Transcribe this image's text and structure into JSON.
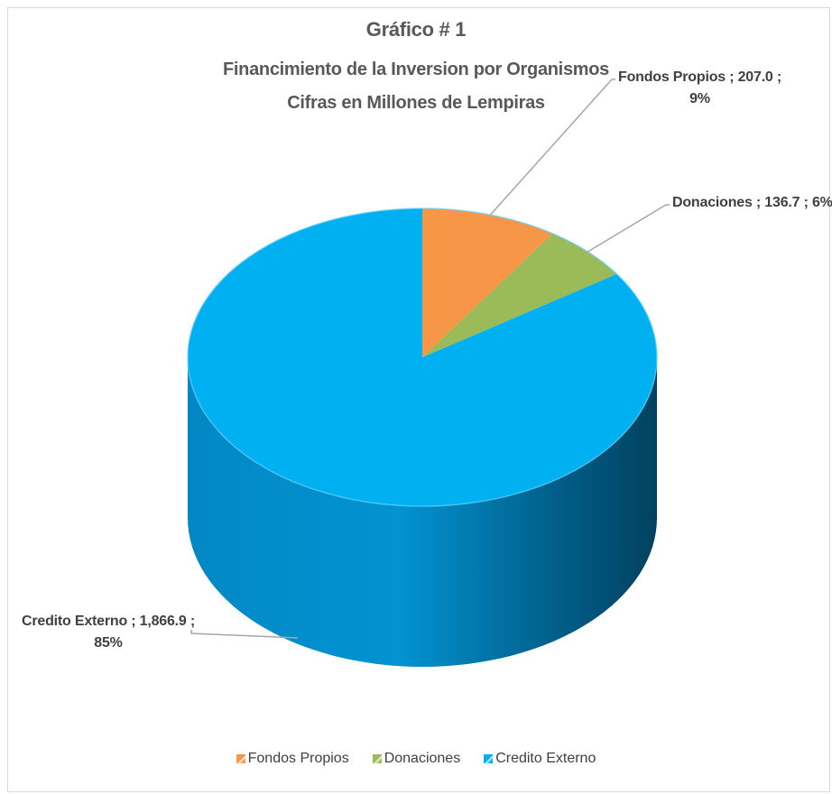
{
  "chart_data": {
    "type": "pie",
    "title": "Gráfico # 1",
    "subtitle_lines": [
      "Financimiento de la Inversion por Organismos",
      "Cifras en Millones de Lempiras"
    ],
    "slices": [
      {
        "name": "Fondos Propios",
        "value": 207.0,
        "value_label": "207.0",
        "percent": "9%",
        "color": "#F79646"
      },
      {
        "name": "Donaciones",
        "value": 136.7,
        "value_label": "136.7",
        "percent": "6%",
        "color": "#9BBB59"
      },
      {
        "name": "Credito Externo",
        "value": 1866.9,
        "value_label": "1,866.9",
        "percent": "85%",
        "color": "#00B0F0"
      }
    ],
    "data_labels": [
      {
        "line1": "Fondos Propios ;  207.0 ;",
        "line2": "9%"
      },
      {
        "line1": "Donaciones ;  136.7 ; 6%",
        "line2": ""
      },
      {
        "line1": "Credito Externo ;  1,866.9 ;",
        "line2": "85%"
      }
    ],
    "legend": [
      "Fondos Propios",
      "Donaciones",
      "Credito Externo"
    ],
    "legend_position": "bottom",
    "style": "3d-pie"
  }
}
